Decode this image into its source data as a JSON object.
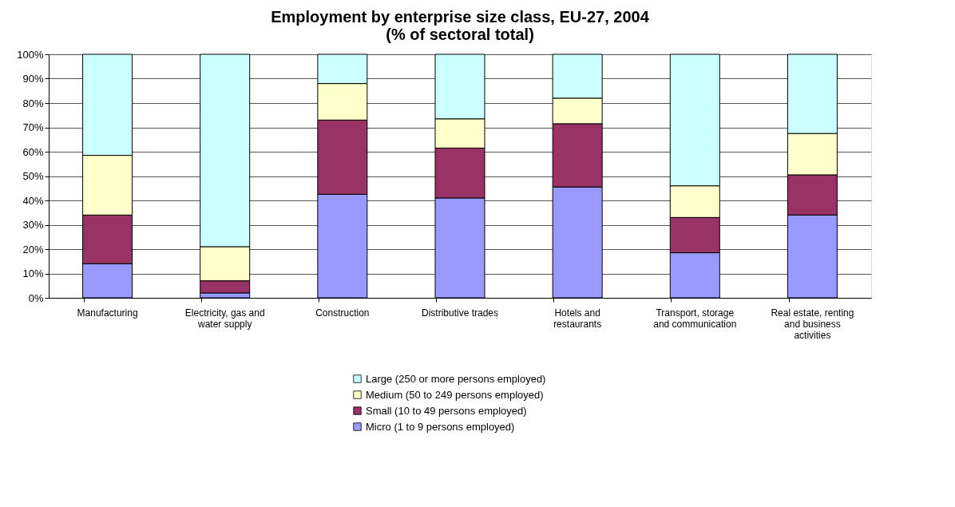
{
  "chart_data": {
    "type": "bar",
    "title": [
      "Employment by enterprise size class, EU-27, 2004",
      "(% of sectoral total)"
    ],
    "stacked": true,
    "categories": [
      "Manufacturing",
      "Electricity, gas and water supply",
      "Construction",
      "Distributive trades",
      "Hotels and restaurants",
      "Transport, storage and communication",
      "Real estate, renting and business activities"
    ],
    "series": [
      {
        "name": "Micro (1 to 9 persons employed)",
        "color": "#9999ff",
        "values": [
          14,
          2,
          42.5,
          41,
          45.5,
          18.5,
          34
        ]
      },
      {
        "name": "Small (10 to 49 persons employed)",
        "color": "#993366",
        "values": [
          20,
          5,
          30.5,
          20.5,
          26,
          14.5,
          16.5
        ]
      },
      {
        "name": "Medium (50 to 249 persons employed)",
        "color": "#ffffcc",
        "values": [
          24.5,
          14,
          15,
          12,
          10.5,
          13,
          17
        ]
      },
      {
        "name": "Large (250 or more persons employed)",
        "color": "#ccffff",
        "values": [
          41.5,
          79,
          12,
          26.5,
          18,
          54,
          32.5
        ]
      }
    ],
    "ylim": [
      0,
      100
    ],
    "yticks": [
      {
        "value": 0,
        "label": "0%"
      },
      {
        "value": 10,
        "label": "10%"
      },
      {
        "value": 20,
        "label": "20%"
      },
      {
        "value": 30,
        "label": "30%"
      },
      {
        "value": 40,
        "label": "40%"
      },
      {
        "value": 50,
        "label": "50%"
      },
      {
        "value": 60,
        "label": "60%"
      },
      {
        "value": 70,
        "label": "70%"
      },
      {
        "value": 80,
        "label": "80%"
      },
      {
        "value": 90,
        "label": "90%"
      },
      {
        "value": 100,
        "label": "100%"
      }
    ],
    "grid": "y",
    "legend": "bottom"
  }
}
